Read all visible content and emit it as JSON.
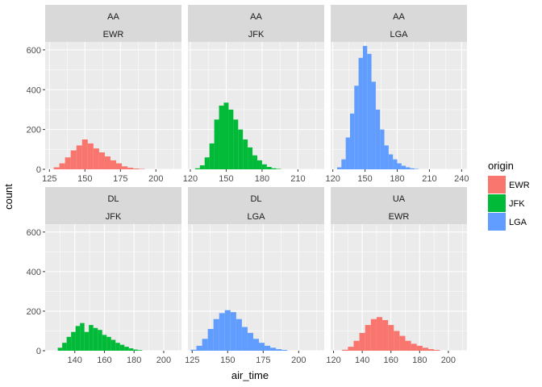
{
  "chart_data": {
    "type": "bar",
    "subtype": "faceted histogram",
    "xlabel": "air_time",
    "ylabel": "count",
    "ylim": [
      0,
      640
    ],
    "y_ticks": [
      0,
      200,
      400,
      600
    ],
    "grid": true,
    "legend": {
      "title": "origin",
      "position": "right",
      "entries": [
        {
          "name": "EWR",
          "color": "#F8766D"
        },
        {
          "name": "JFK",
          "color": "#00BA38"
        },
        {
          "name": "LGA",
          "color": "#619CFF"
        }
      ]
    },
    "panels": [
      {
        "carrier": "AA",
        "origin": "EWR",
        "xlim": [
          122,
          218
        ],
        "x_ticks": [
          125,
          150,
          175,
          200
        ],
        "bins": [
          {
            "x": 130,
            "count": 10
          },
          {
            "x": 134,
            "count": 30
          },
          {
            "x": 138,
            "count": 60
          },
          {
            "x": 142,
            "count": 95
          },
          {
            "x": 146,
            "count": 120
          },
          {
            "x": 150,
            "count": 150
          },
          {
            "x": 154,
            "count": 130
          },
          {
            "x": 158,
            "count": 105
          },
          {
            "x": 162,
            "count": 85
          },
          {
            "x": 166,
            "count": 65
          },
          {
            "x": 170,
            "count": 45
          },
          {
            "x": 174,
            "count": 30
          },
          {
            "x": 178,
            "count": 15
          },
          {
            "x": 182,
            "count": 8
          },
          {
            "x": 186,
            "count": 4
          },
          {
            "x": 190,
            "count": 2
          }
        ]
      },
      {
        "carrier": "AA",
        "origin": "JFK",
        "xlim": [
          118,
          232
        ],
        "x_ticks": [
          120,
          150,
          180,
          210
        ],
        "bins": [
          {
            "x": 126,
            "count": 5
          },
          {
            "x": 130,
            "count": 20
          },
          {
            "x": 134,
            "count": 60
          },
          {
            "x": 138,
            "count": 130
          },
          {
            "x": 142,
            "count": 250
          },
          {
            "x": 146,
            "count": 320
          },
          {
            "x": 150,
            "count": 335
          },
          {
            "x": 154,
            "count": 300
          },
          {
            "x": 158,
            "count": 250
          },
          {
            "x": 162,
            "count": 200
          },
          {
            "x": 166,
            "count": 150
          },
          {
            "x": 170,
            "count": 110
          },
          {
            "x": 174,
            "count": 70
          },
          {
            "x": 178,
            "count": 45
          },
          {
            "x": 182,
            "count": 25
          },
          {
            "x": 186,
            "count": 12
          },
          {
            "x": 190,
            "count": 5
          },
          {
            "x": 194,
            "count": 2
          }
        ]
      },
      {
        "carrier": "AA",
        "origin": "LGA",
        "xlim": [
          118,
          245
        ],
        "x_ticks": [
          120,
          150,
          180,
          210,
          240
        ],
        "bins": [
          {
            "x": 126,
            "count": 10
          },
          {
            "x": 130,
            "count": 50
          },
          {
            "x": 134,
            "count": 160
          },
          {
            "x": 138,
            "count": 280
          },
          {
            "x": 142,
            "count": 420
          },
          {
            "x": 146,
            "count": 560
          },
          {
            "x": 150,
            "count": 620
          },
          {
            "x": 154,
            "count": 580
          },
          {
            "x": 158,
            "count": 440
          },
          {
            "x": 162,
            "count": 300
          },
          {
            "x": 166,
            "count": 200
          },
          {
            "x": 170,
            "count": 120
          },
          {
            "x": 174,
            "count": 75
          },
          {
            "x": 178,
            "count": 50
          },
          {
            "x": 182,
            "count": 30
          },
          {
            "x": 186,
            "count": 18
          },
          {
            "x": 190,
            "count": 10
          },
          {
            "x": 194,
            "count": 5
          },
          {
            "x": 198,
            "count": 2
          }
        ]
      },
      {
        "carrier": "DL",
        "origin": "JFK",
        "xlim": [
          120,
          212
        ],
        "x_ticks": [
          140,
          160,
          180,
          200
        ],
        "bins": [
          {
            "x": 130,
            "count": 15
          },
          {
            "x": 133,
            "count": 40
          },
          {
            "x": 136,
            "count": 70
          },
          {
            "x": 139,
            "count": 95
          },
          {
            "x": 142,
            "count": 125
          },
          {
            "x": 145,
            "count": 140
          },
          {
            "x": 148,
            "count": 95
          },
          {
            "x": 151,
            "count": 130
          },
          {
            "x": 154,
            "count": 115
          },
          {
            "x": 157,
            "count": 105
          },
          {
            "x": 160,
            "count": 80
          },
          {
            "x": 163,
            "count": 70
          },
          {
            "x": 166,
            "count": 55
          },
          {
            "x": 169,
            "count": 40
          },
          {
            "x": 172,
            "count": 30
          },
          {
            "x": 175,
            "count": 20
          },
          {
            "x": 178,
            "count": 12
          },
          {
            "x": 181,
            "count": 6
          },
          {
            "x": 184,
            "count": 3
          }
        ]
      },
      {
        "carrier": "DL",
        "origin": "LGA",
        "xlim": [
          122,
          218
        ],
        "x_ticks": [
          125,
          150,
          175,
          200
        ],
        "bins": [
          {
            "x": 126,
            "count": 5
          },
          {
            "x": 130,
            "count": 25
          },
          {
            "x": 134,
            "count": 60
          },
          {
            "x": 138,
            "count": 110
          },
          {
            "x": 142,
            "count": 160
          },
          {
            "x": 146,
            "count": 190
          },
          {
            "x": 150,
            "count": 205
          },
          {
            "x": 154,
            "count": 195
          },
          {
            "x": 158,
            "count": 160
          },
          {
            "x": 162,
            "count": 120
          },
          {
            "x": 166,
            "count": 90
          },
          {
            "x": 170,
            "count": 60
          },
          {
            "x": 174,
            "count": 40
          },
          {
            "x": 178,
            "count": 25
          },
          {
            "x": 182,
            "count": 15
          },
          {
            "x": 186,
            "count": 8
          },
          {
            "x": 190,
            "count": 4
          }
        ]
      },
      {
        "carrier": "UA",
        "origin": "EWR",
        "xlim": [
          118,
          213
        ],
        "x_ticks": [
          120,
          140,
          160,
          180,
          200
        ],
        "bins": [
          {
            "x": 128,
            "count": 5
          },
          {
            "x": 132,
            "count": 20
          },
          {
            "x": 136,
            "count": 50
          },
          {
            "x": 140,
            "count": 90
          },
          {
            "x": 144,
            "count": 130
          },
          {
            "x": 148,
            "count": 160
          },
          {
            "x": 152,
            "count": 170
          },
          {
            "x": 156,
            "count": 155
          },
          {
            "x": 160,
            "count": 130
          },
          {
            "x": 164,
            "count": 100
          },
          {
            "x": 168,
            "count": 75
          },
          {
            "x": 172,
            "count": 50
          },
          {
            "x": 176,
            "count": 35
          },
          {
            "x": 180,
            "count": 25
          },
          {
            "x": 184,
            "count": 15
          },
          {
            "x": 188,
            "count": 8
          },
          {
            "x": 192,
            "count": 4
          }
        ]
      }
    ]
  },
  "colors": {
    "EWR": "#F8766D",
    "JFK": "#00BA38",
    "LGA": "#619CFF",
    "panel_background": "#EBEBEB",
    "strip_background": "#D9D9D9",
    "grid_major": "#FFFFFF"
  }
}
